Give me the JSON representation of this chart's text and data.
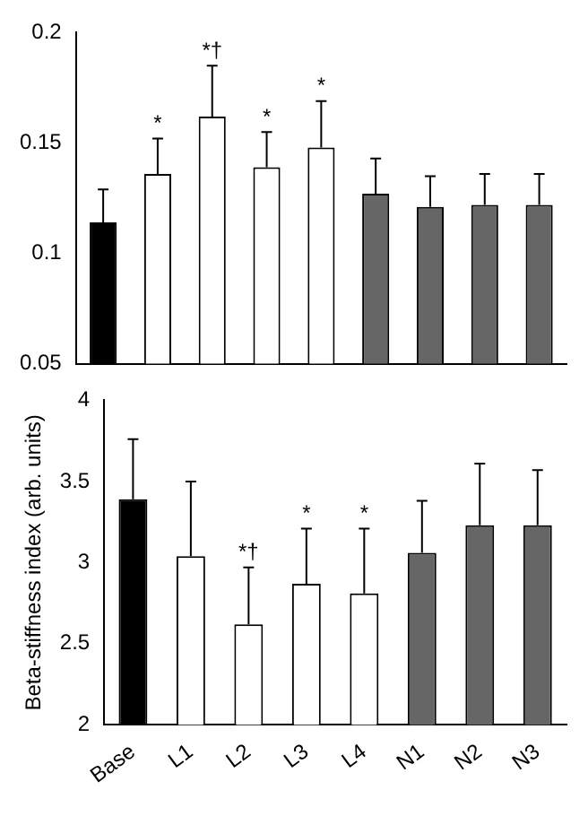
{
  "chart_data": [
    {
      "type": "bar",
      "categories": [
        null,
        null,
        null,
        null,
        null,
        null,
        null,
        null,
        null
      ],
      "values": [
        0.114,
        0.136,
        0.162,
        0.139,
        0.148,
        0.127,
        0.121,
        0.122,
        0.122
      ],
      "colors": [
        "#000000",
        "#ffffff",
        "#ffffff",
        "#ffffff",
        "#ffffff",
        "#666666",
        "#666666",
        "#666666",
        "#666666"
      ],
      "errors": [
        [
          0.114,
          0.129
        ],
        [
          0.136,
          0.152
        ],
        [
          0.162,
          0.185
        ],
        [
          0.139,
          0.155
        ],
        [
          0.148,
          0.169
        ],
        [
          0.127,
          0.143
        ],
        [
          0.121,
          0.135
        ],
        [
          0.122,
          0.136
        ],
        [
          0.122,
          0.136
        ]
      ],
      "ylim": [
        0.05,
        0.2
      ],
      "yticks": [
        0.05,
        0.1,
        0.15,
        0.2
      ],
      "grid": false,
      "legend": false,
      "tick_labels": "y",
      "annotations": [
        {
          "text": "*",
          "y": 0.152
        },
        {
          "text": "*†",
          "y": 0.185
        },
        {
          "text": "*",
          "y": 0.155
        },
        {
          "text": "*",
          "y": 0.169
        }
      ]
    },
    {
      "type": "bar",
      "categories": [
        "Base",
        "L1",
        "L2",
        "L3",
        "L4",
        "N1",
        "N2",
        "N3"
      ],
      "values": [
        3.39,
        3.04,
        2.62,
        2.87,
        2.81,
        3.06,
        3.23,
        3.23
      ],
      "colors": [
        "#000000",
        "#ffffff",
        "#ffffff",
        "#ffffff",
        "#ffffff",
        "#666666",
        "#666666",
        "#666666"
      ],
      "errors": [
        [
          3.39,
          3.76
        ],
        [
          3.04,
          3.5
        ],
        [
          2.62,
          2.97
        ],
        [
          2.87,
          3.21
        ],
        [
          2.81,
          3.21
        ],
        [
          3.06,
          3.38
        ],
        [
          3.23,
          3.61
        ],
        [
          3.23,
          3.57
        ]
      ],
      "ylim": [
        2,
        4
      ],
      "yticks": [
        2,
        2.5,
        3,
        3.5,
        4
      ],
      "grid": false,
      "legend": false,
      "ylabel": "Beta-stiffness index (arb. units)",
      "annotations": [
        {
          "text": "*†",
          "x": "L2",
          "y": 2.97
        },
        {
          "text": "*",
          "x": "L3",
          "y": 3.21
        },
        {
          "text": "*",
          "x": "L4",
          "y": 3.21
        }
      ]
    }
  ]
}
